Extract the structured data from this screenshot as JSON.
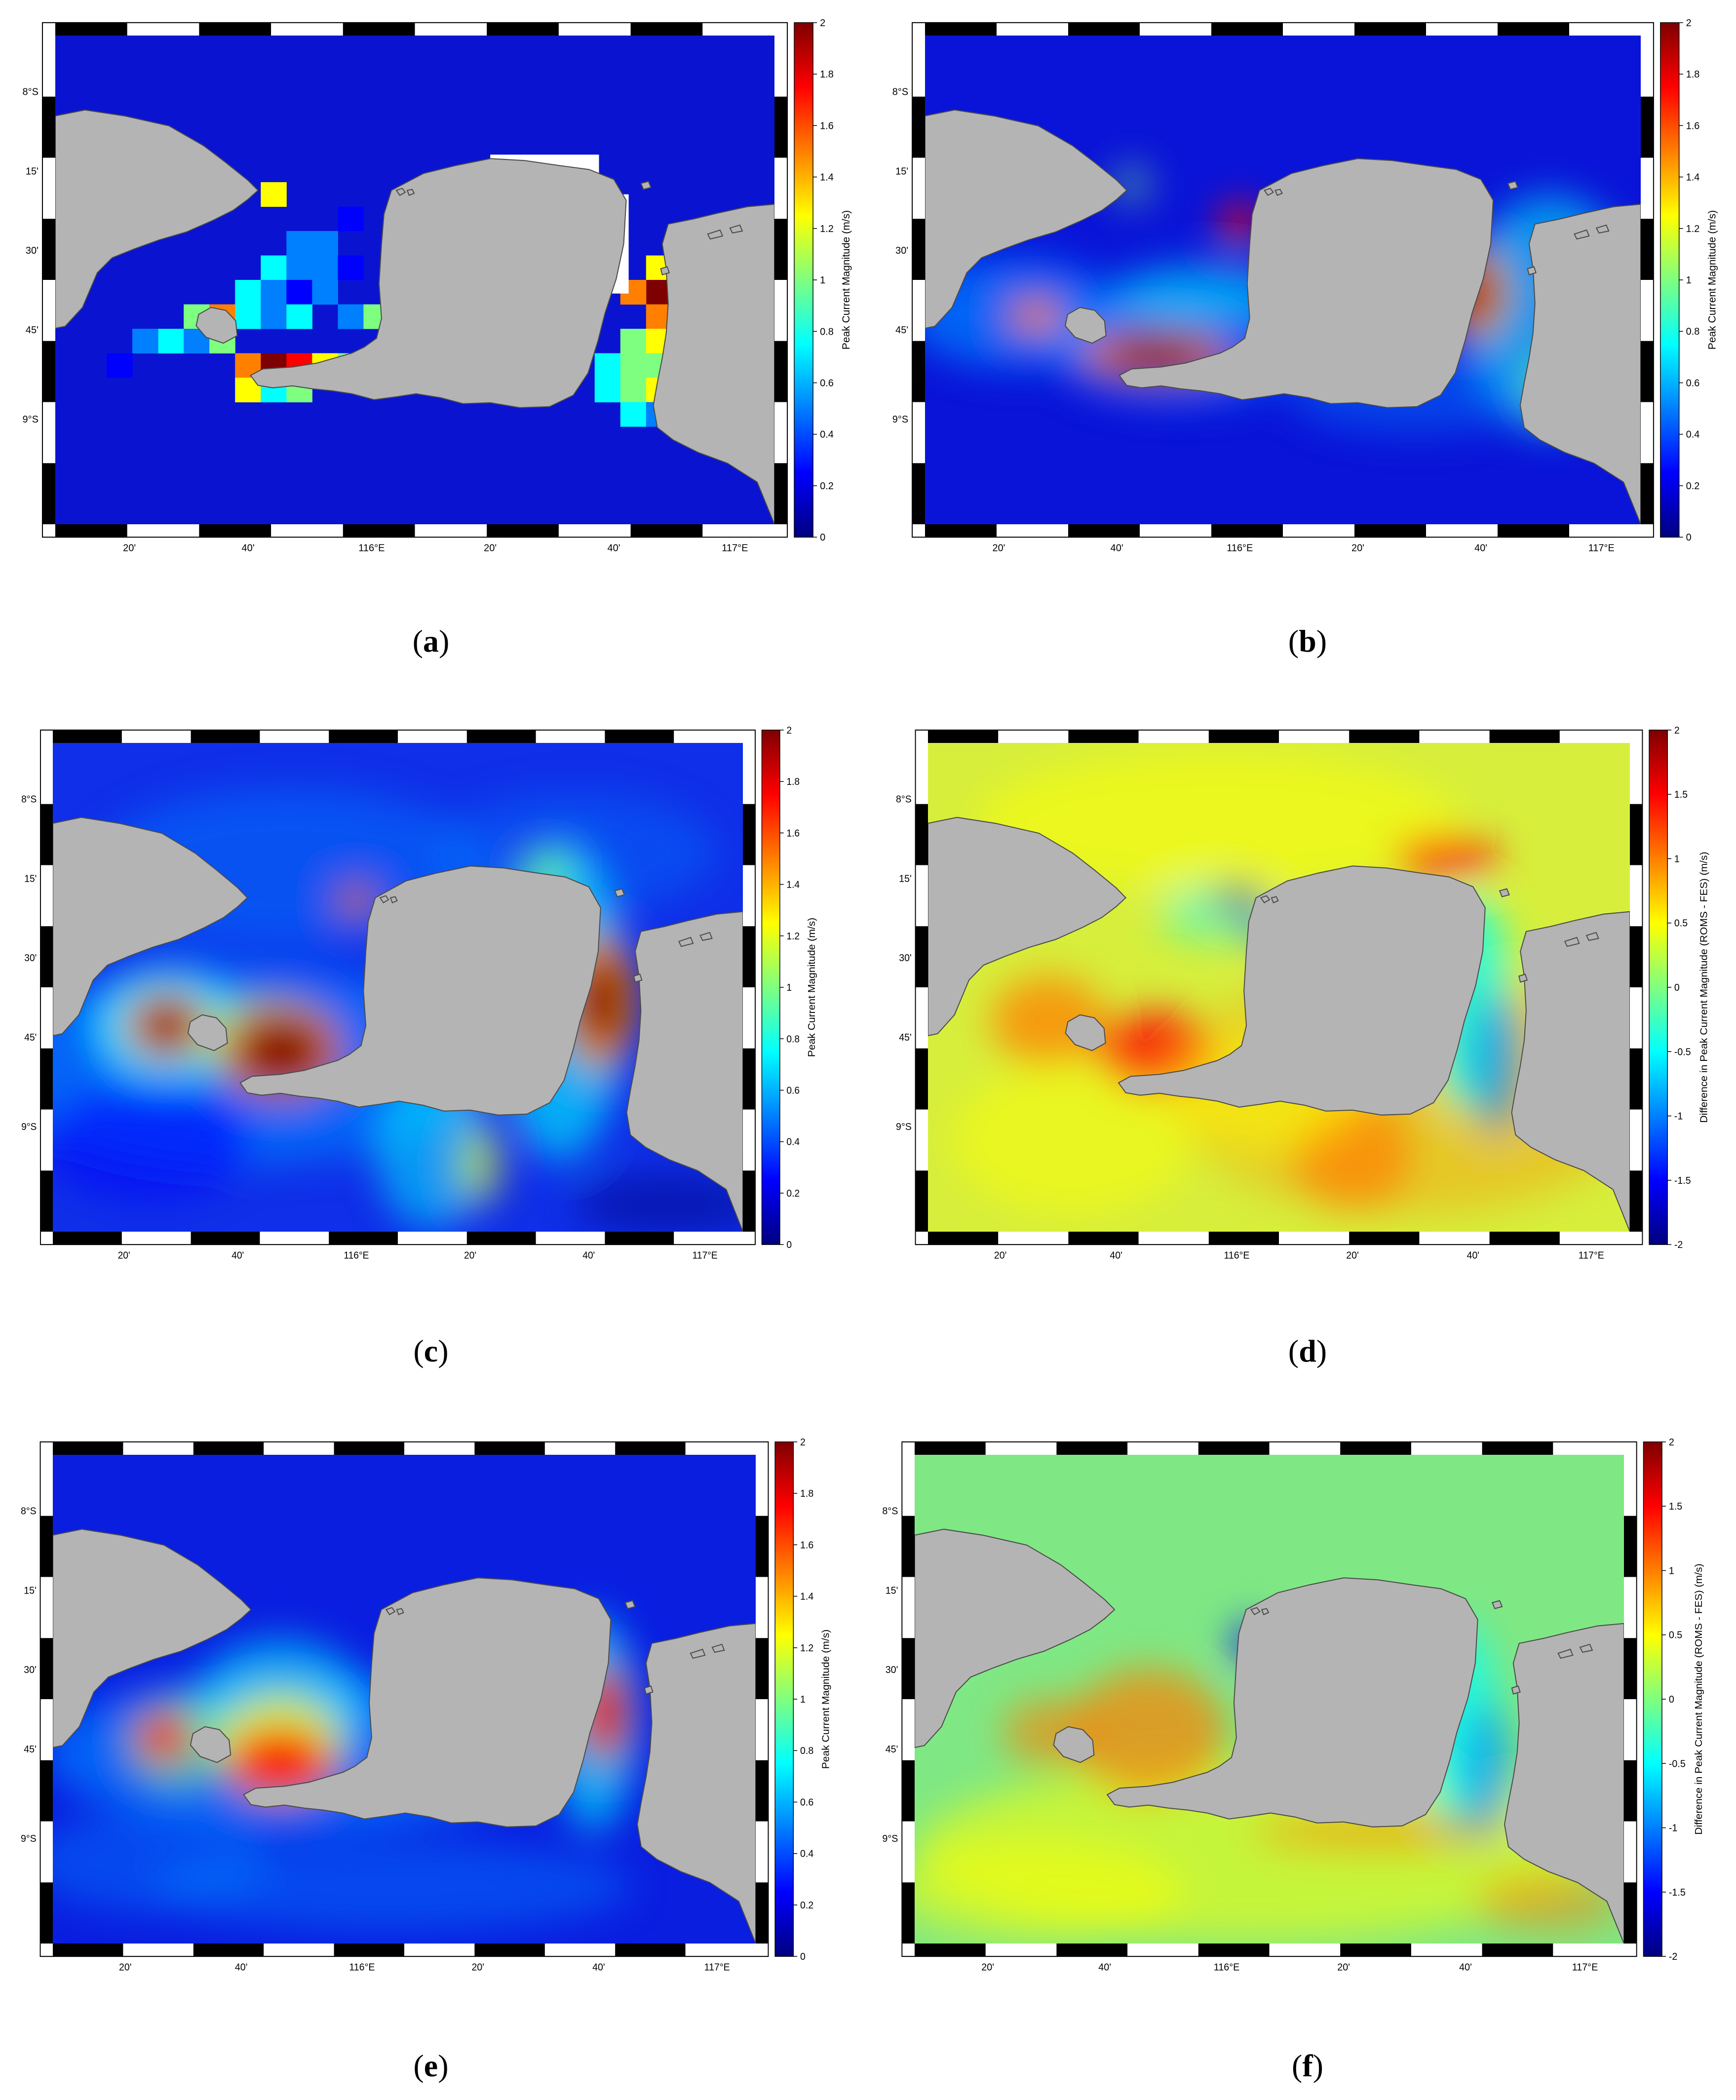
{
  "axes": {
    "lat_labels": [
      "8°S",
      "15'",
      "30'",
      "45'",
      "9°S"
    ],
    "lon_labels": [
      "20'",
      "40'",
      "116°E",
      "20'",
      "40'",
      "117°E"
    ]
  },
  "panels": [
    {
      "letter": "a",
      "colorbar_title": "Peak Current Magnitude (m/s)",
      "ticks": [
        "2",
        "1.8",
        "1.6",
        "1.4",
        "1.2",
        "1",
        "0.8",
        "0.6",
        "0.4",
        "0.2",
        "0"
      ],
      "style": "coarse",
      "range": [
        0,
        2
      ]
    },
    {
      "letter": "b",
      "colorbar_title": "Peak Current Magnitude (m/s)",
      "ticks": [
        "2",
        "1.8",
        "1.6",
        "1.4",
        "1.2",
        "1",
        "0.8",
        "0.6",
        "0.4",
        "0.2",
        "0"
      ],
      "style": "smooth",
      "range": [
        0,
        2
      ]
    },
    {
      "letter": "c",
      "colorbar_title": "Peak Current Magnitude (m/s)",
      "ticks": [
        "2",
        "1.8",
        "1.6",
        "1.4",
        "1.2",
        "1",
        "0.8",
        "0.6",
        "0.4",
        "0.2",
        "0"
      ],
      "style": "speed",
      "range": [
        0,
        2
      ]
    },
    {
      "letter": "d",
      "colorbar_title": "Difference in Peak Current Magnitude (ROMS - FES) (m/s)",
      "ticks": [
        "2",
        "1.5",
        "1",
        "0.5",
        "0",
        "-0.5",
        "-1",
        "-1.5",
        "-2"
      ],
      "style": "diff",
      "range": [
        -2,
        2
      ]
    },
    {
      "letter": "e",
      "colorbar_title": "Peak Current Magnitude (m/s)",
      "ticks": [
        "2",
        "1.8",
        "1.6",
        "1.4",
        "1.2",
        "1",
        "0.8",
        "0.6",
        "0.4",
        "0.2",
        "0"
      ],
      "style": "speed2",
      "range": [
        0,
        2
      ]
    },
    {
      "letter": "f",
      "colorbar_title": "Difference in Peak Current Magnitude (ROMS - FES) (m/s)",
      "ticks": [
        "2",
        "1.5",
        "1",
        "0.5",
        "0",
        "-0.5",
        "-1",
        "-1.5",
        "-2"
      ],
      "style": "diff2",
      "range": [
        -2,
        2
      ]
    }
  ],
  "colors": {
    "land": "#b4b4b4",
    "jet": [
      "#00007f",
      "#0000ff",
      "#007fff",
      "#00ffff",
      "#7fff7f",
      "#ffff00",
      "#ff7f00",
      "#ff0000",
      "#7f0000"
    ]
  }
}
